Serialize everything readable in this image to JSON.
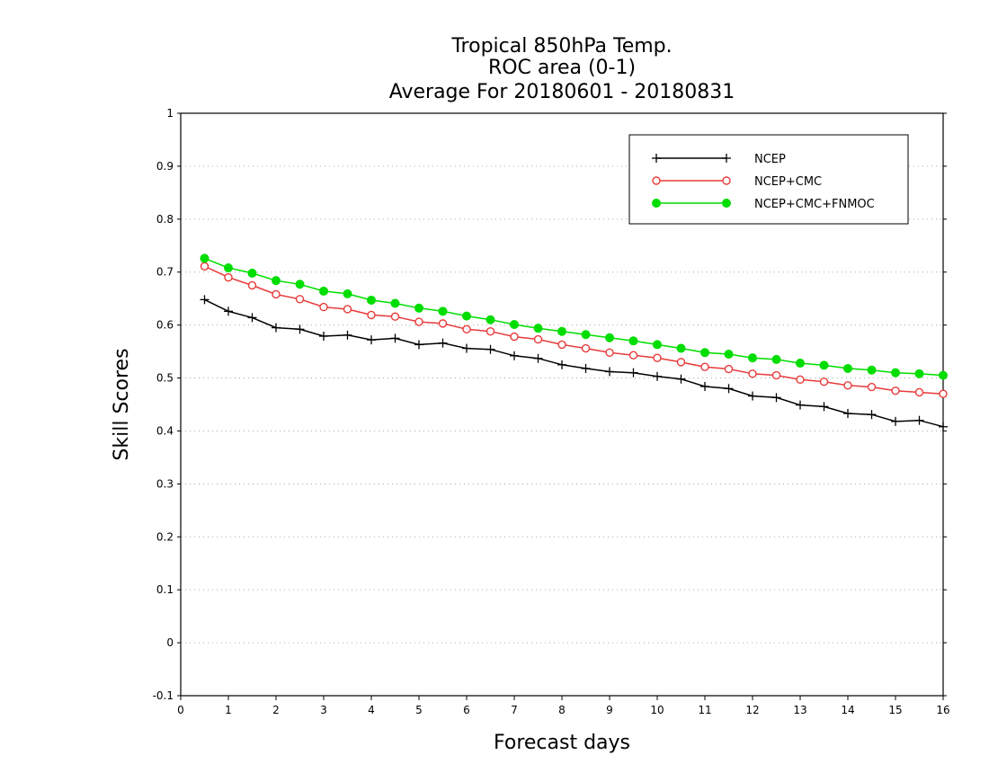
{
  "chart_data": {
    "type": "line",
    "title_lines": [
      "Tropical 850hPa Temp.",
      "ROC area (0-1)",
      "Average For 20180601 - 20180831"
    ],
    "xlabel": "Forecast days",
    "ylabel": "Skill Scores",
    "xlim": [
      0,
      16
    ],
    "ylim": [
      -0.1,
      1
    ],
    "x_ticks": [
      "0",
      "1",
      "2",
      "3",
      "4",
      "5",
      "6",
      "7",
      "8",
      "9",
      "10",
      "11",
      "12",
      "13",
      "14",
      "15",
      "16"
    ],
    "y_ticks": [
      "-0.1",
      "0",
      "0.1",
      "0.2",
      "0.3",
      "0.4",
      "0.5",
      "0.6",
      "0.7",
      "0.8",
      "0.9",
      "1"
    ],
    "grid": "horizontal dotted",
    "legend_position": "top-right",
    "x": [
      0.5,
      1,
      1.5,
      2,
      2.5,
      3,
      3.5,
      4,
      4.5,
      5,
      5.5,
      6,
      6.5,
      7,
      7.5,
      8,
      8.5,
      9,
      9.5,
      10,
      10.5,
      11,
      11.5,
      12,
      12.5,
      13,
      13.5,
      14,
      14.5,
      15,
      15.5,
      16
    ],
    "series": [
      {
        "name": "NCEP",
        "color": "#000000",
        "marker": "plus",
        "values": [
          0.648,
          0.626,
          0.614,
          0.595,
          0.592,
          0.579,
          0.581,
          0.572,
          0.575,
          0.563,
          0.566,
          0.556,
          0.554,
          0.542,
          0.537,
          0.525,
          0.518,
          0.512,
          0.51,
          0.503,
          0.498,
          0.484,
          0.48,
          0.466,
          0.463,
          0.449,
          0.446,
          0.433,
          0.431,
          0.418,
          0.42,
          0.408
        ]
      },
      {
        "name": "NCEP+CMC",
        "color": "#e83a3a",
        "marker": "open-circle",
        "values": [
          0.711,
          0.69,
          0.675,
          0.658,
          0.649,
          0.634,
          0.63,
          0.619,
          0.616,
          0.606,
          0.603,
          0.592,
          0.588,
          0.578,
          0.573,
          0.563,
          0.556,
          0.548,
          0.543,
          0.538,
          0.53,
          0.521,
          0.517,
          0.508,
          0.505,
          0.497,
          0.493,
          0.486,
          0.483,
          0.476,
          0.473,
          0.47
        ]
      },
      {
        "name": "NCEP+CMC+FNMOC",
        "color": "#00dd00",
        "marker": "filled-circle",
        "values": [
          0.726,
          0.708,
          0.698,
          0.684,
          0.677,
          0.664,
          0.659,
          0.647,
          0.641,
          0.632,
          0.626,
          0.617,
          0.61,
          0.601,
          0.594,
          0.588,
          0.582,
          0.576,
          0.57,
          0.563,
          0.556,
          0.548,
          0.545,
          0.538,
          0.535,
          0.528,
          0.524,
          0.518,
          0.515,
          0.51,
          0.508,
          0.505
        ]
      }
    ]
  }
}
